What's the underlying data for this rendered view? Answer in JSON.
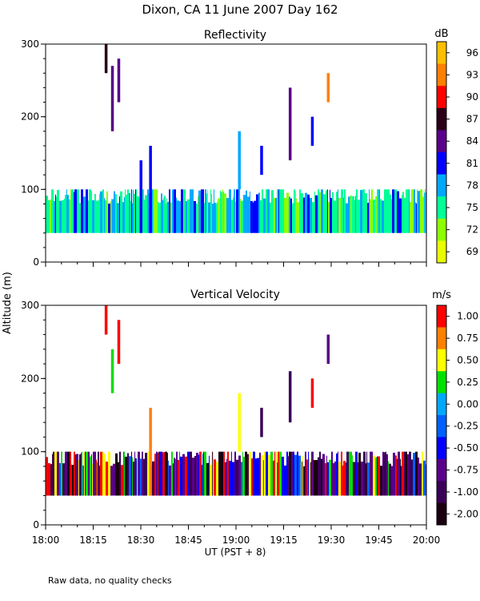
{
  "figure": {
    "title": "Dixon, CA 11 June 2007  Day 162",
    "ylabel": "Altitude (m)",
    "xlabel": "UT  (PST + 8)",
    "footnote": "Raw data, no quality checks",
    "x_ticks": [
      "18:00",
      "18:15",
      "18:30",
      "18:45",
      "19:00",
      "19:15",
      "19:30",
      "19:45",
      "20:00"
    ]
  },
  "chart_data": [
    {
      "type": "heatmap",
      "title": "Reflectivity",
      "colorbar_label": "dB",
      "colorbar_ticks": [
        "96",
        "93",
        "90",
        "87",
        "84",
        "81",
        "78",
        "75",
        "72",
        "69"
      ],
      "colorbar_colors": [
        "#ffbf00",
        "#ff8000",
        "#ff0000",
        "#2b0018",
        "#5a008a",
        "#0000ff",
        "#00a8ff",
        "#00ff96",
        "#8cff00",
        "#e8ff00"
      ],
      "x_range_minutes_after_1800": [
        0,
        120
      ],
      "ylim": [
        0,
        300
      ],
      "y_ticks": [
        0,
        100,
        200,
        300
      ],
      "background_layer_altitude_m": [
        40,
        100
      ],
      "features": [
        {
          "time": "18:19",
          "alt_m": [
            260,
            300
          ],
          "level_db": 87
        },
        {
          "time": "18:21",
          "alt_m": [
            180,
            270
          ],
          "level_db": 84
        },
        {
          "time": "18:23",
          "alt_m": [
            220,
            280
          ],
          "level_db": 84
        },
        {
          "time": "18:33",
          "alt_m": [
            40,
            160
          ],
          "level_db": 81
        },
        {
          "time": "18:30",
          "alt_m": [
            40,
            140
          ],
          "level_db": 81
        },
        {
          "time": "19:01",
          "alt_m": [
            100,
            180
          ],
          "level_db": 78
        },
        {
          "time": "19:08",
          "alt_m": [
            120,
            160
          ],
          "level_db": 81
        },
        {
          "time": "19:17",
          "alt_m": [
            140,
            240
          ],
          "level_db": 84
        },
        {
          "time": "19:24",
          "alt_m": [
            160,
            200
          ],
          "level_db": 81
        },
        {
          "time": "19:29",
          "alt_m": [
            220,
            260
          ],
          "level_db": 93
        }
      ]
    },
    {
      "type": "heatmap",
      "title": "Vertical Velocity",
      "colorbar_label": "m/s",
      "colorbar_ticks": [
        "1.00",
        "0.75",
        "0.50",
        "0.25",
        "0.00",
        "-0.25",
        "-0.50",
        "-0.75",
        "-1.00",
        "-2.00"
      ],
      "colorbar_colors": [
        "#ff0000",
        "#ff8000",
        "#ffff00",
        "#00e000",
        "#00a8ff",
        "#0060ff",
        "#0000ff",
        "#5a008a",
        "#3a0058",
        "#1a0010"
      ],
      "x_range_minutes_after_1800": [
        0,
        120
      ],
      "ylim": [
        0,
        300
      ],
      "y_ticks": [
        0,
        100,
        200,
        300
      ],
      "background_layer_altitude_m": [
        40,
        100
      ],
      "features": [
        {
          "time": "18:19",
          "alt_m": [
            260,
            300
          ],
          "level_ms": 1.0
        },
        {
          "time": "18:21",
          "alt_m": [
            180,
            240
          ],
          "level_ms": 0.25
        },
        {
          "time": "18:23",
          "alt_m": [
            220,
            280
          ],
          "level_ms": 1.0
        },
        {
          "time": "18:33",
          "alt_m": [
            40,
            160
          ],
          "level_ms": 0.75
        },
        {
          "time": "19:01",
          "alt_m": [
            100,
            180
          ],
          "level_ms": 0.5
        },
        {
          "time": "19:08",
          "alt_m": [
            120,
            160
          ],
          "level_ms": -1.0
        },
        {
          "time": "19:17",
          "alt_m": [
            140,
            210
          ],
          "level_ms": -1.0
        },
        {
          "time": "19:24",
          "alt_m": [
            160,
            200
          ],
          "level_ms": 1.0
        },
        {
          "time": "19:29",
          "alt_m": [
            220,
            260
          ],
          "level_ms": -0.75
        }
      ]
    }
  ]
}
